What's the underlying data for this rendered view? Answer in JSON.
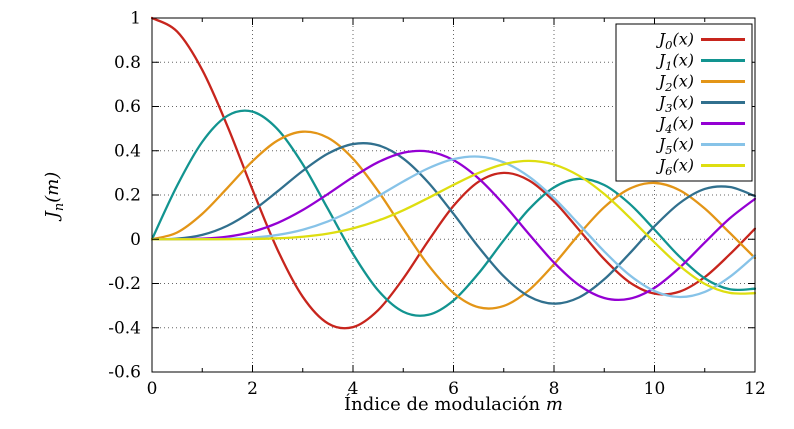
{
  "chart_data": {
    "type": "line",
    "title": "",
    "xlabel": "Índice de modulación m",
    "ylabel": "J_n(m)",
    "xlabel_main": "Índice de modulación",
    "xlabel_var": "m",
    "ylabel_math": "J_n(m)",
    "xlim": [
      0,
      12
    ],
    "ylim": [
      -0.6,
      1
    ],
    "x_tick_values": [
      0,
      2,
      4,
      6,
      8,
      10,
      12
    ],
    "x_tick_labels": [
      "0",
      "2",
      "4",
      "6",
      "8",
      "10",
      "12"
    ],
    "x_minor_ticks": [
      1,
      3,
      5,
      7,
      9,
      11
    ],
    "y_tick_values": [
      -0.6,
      -0.4,
      -0.2,
      0,
      0.2,
      0.4,
      0.6,
      0.8,
      1
    ],
    "y_tick_labels": [
      "-0.6",
      "-0.4",
      "-0.2",
      "0",
      "0.2",
      "0.4",
      "0.6",
      "0.8",
      "1"
    ],
    "grid": "dotted",
    "grid_color": "#666666",
    "border_color": "#000000",
    "background": "#ffffff",
    "legend_position": "top-right",
    "x": [
      0,
      0.5,
      1,
      1.5,
      2,
      2.5,
      3,
      3.5,
      4,
      4.5,
      5,
      5.5,
      6,
      6.5,
      7,
      7.5,
      8,
      8.5,
      9,
      9.5,
      10,
      10.5,
      11,
      11.5,
      12
    ],
    "series": [
      {
        "name": "J_0(x)",
        "color": "#c7251d",
        "values": [
          1.0,
          0.9385,
          0.7652,
          0.5118,
          0.2239,
          -0.0484,
          -0.2601,
          -0.3801,
          -0.3971,
          -0.3205,
          -0.1776,
          -0.0068,
          0.1506,
          0.2601,
          0.3001,
          0.2663,
          0.1717,
          0.0419,
          -0.0903,
          -0.1939,
          -0.2459,
          -0.2366,
          -0.1712,
          -0.0677,
          0.0477
        ]
      },
      {
        "name": "J_1(x)",
        "color": "#129490",
        "values": [
          0,
          0.2423,
          0.4401,
          0.5579,
          0.5767,
          0.4971,
          0.3391,
          0.1374,
          -0.066,
          -0.2311,
          -0.3276,
          -0.3414,
          -0.2767,
          -0.1538,
          -0.0047,
          0.1352,
          0.2346,
          0.2731,
          0.2453,
          0.1613,
          0.0435,
          -0.0789,
          -0.1768,
          -0.2261,
          -0.2234
        ]
      },
      {
        "name": "J_2(x)",
        "color": "#e39517",
        "values": [
          0,
          0.0306,
          0.1149,
          0.2321,
          0.3528,
          0.4461,
          0.4861,
          0.4586,
          0.3641,
          0.2178,
          0.0466,
          -0.1173,
          -0.2429,
          -0.3074,
          -0.3014,
          -0.2303,
          -0.113,
          0.0223,
          0.1448,
          0.2279,
          0.2546,
          0.2216,
          0.139,
          0.0283,
          -0.0849
        ]
      },
      {
        "name": "J_3(x)",
        "color": "#31708e",
        "values": [
          0,
          0.0026,
          0.0196,
          0.061,
          0.1289,
          0.2166,
          0.3091,
          0.3868,
          0.4302,
          0.4247,
          0.3648,
          0.2561,
          0.1148,
          -0.0353,
          -0.1676,
          -0.2581,
          -0.2911,
          -0.2626,
          -0.1809,
          -0.0653,
          0.0584,
          0.1633,
          0.2273,
          0.236,
          0.1951
        ]
      },
      {
        "name": "J_4(x)",
        "color": "#9400d3",
        "values": [
          0,
          0.0002,
          0.0025,
          0.0118,
          0.034,
          0.0738,
          0.132,
          0.2044,
          0.2811,
          0.3484,
          0.3912,
          0.3967,
          0.3576,
          0.2748,
          0.1578,
          0.0238,
          -0.1054,
          -0.2077,
          -0.2655,
          -0.2691,
          -0.2196,
          -0.1283,
          -0.015,
          0.0948,
          0.1825
        ]
      },
      {
        "name": "J_5(x)",
        "color": "#87c3e8",
        "values": [
          0,
          0.0,
          0.0002,
          0.0018,
          0.007,
          0.0195,
          0.043,
          0.0804,
          0.1321,
          0.1947,
          0.2611,
          0.3209,
          0.3621,
          0.3736,
          0.3479,
          0.2834,
          0.1858,
          0.0671,
          -0.055,
          -0.1613,
          -0.2341,
          -0.2611,
          -0.2383,
          -0.17,
          -0.0735
        ]
      },
      {
        "name": "J_6(x)",
        "color": "#dede10",
        "values": [
          0,
          0.0,
          0.0,
          0.0002,
          0.0012,
          0.0042,
          0.0114,
          0.0254,
          0.0491,
          0.0843,
          0.131,
          0.1868,
          0.2458,
          0.2999,
          0.3392,
          0.3541,
          0.3376,
          0.2867,
          0.2043,
          0.0993,
          -0.0145,
          -0.1203,
          -0.2016,
          -0.2426,
          -0.2437
        ]
      }
    ]
  }
}
